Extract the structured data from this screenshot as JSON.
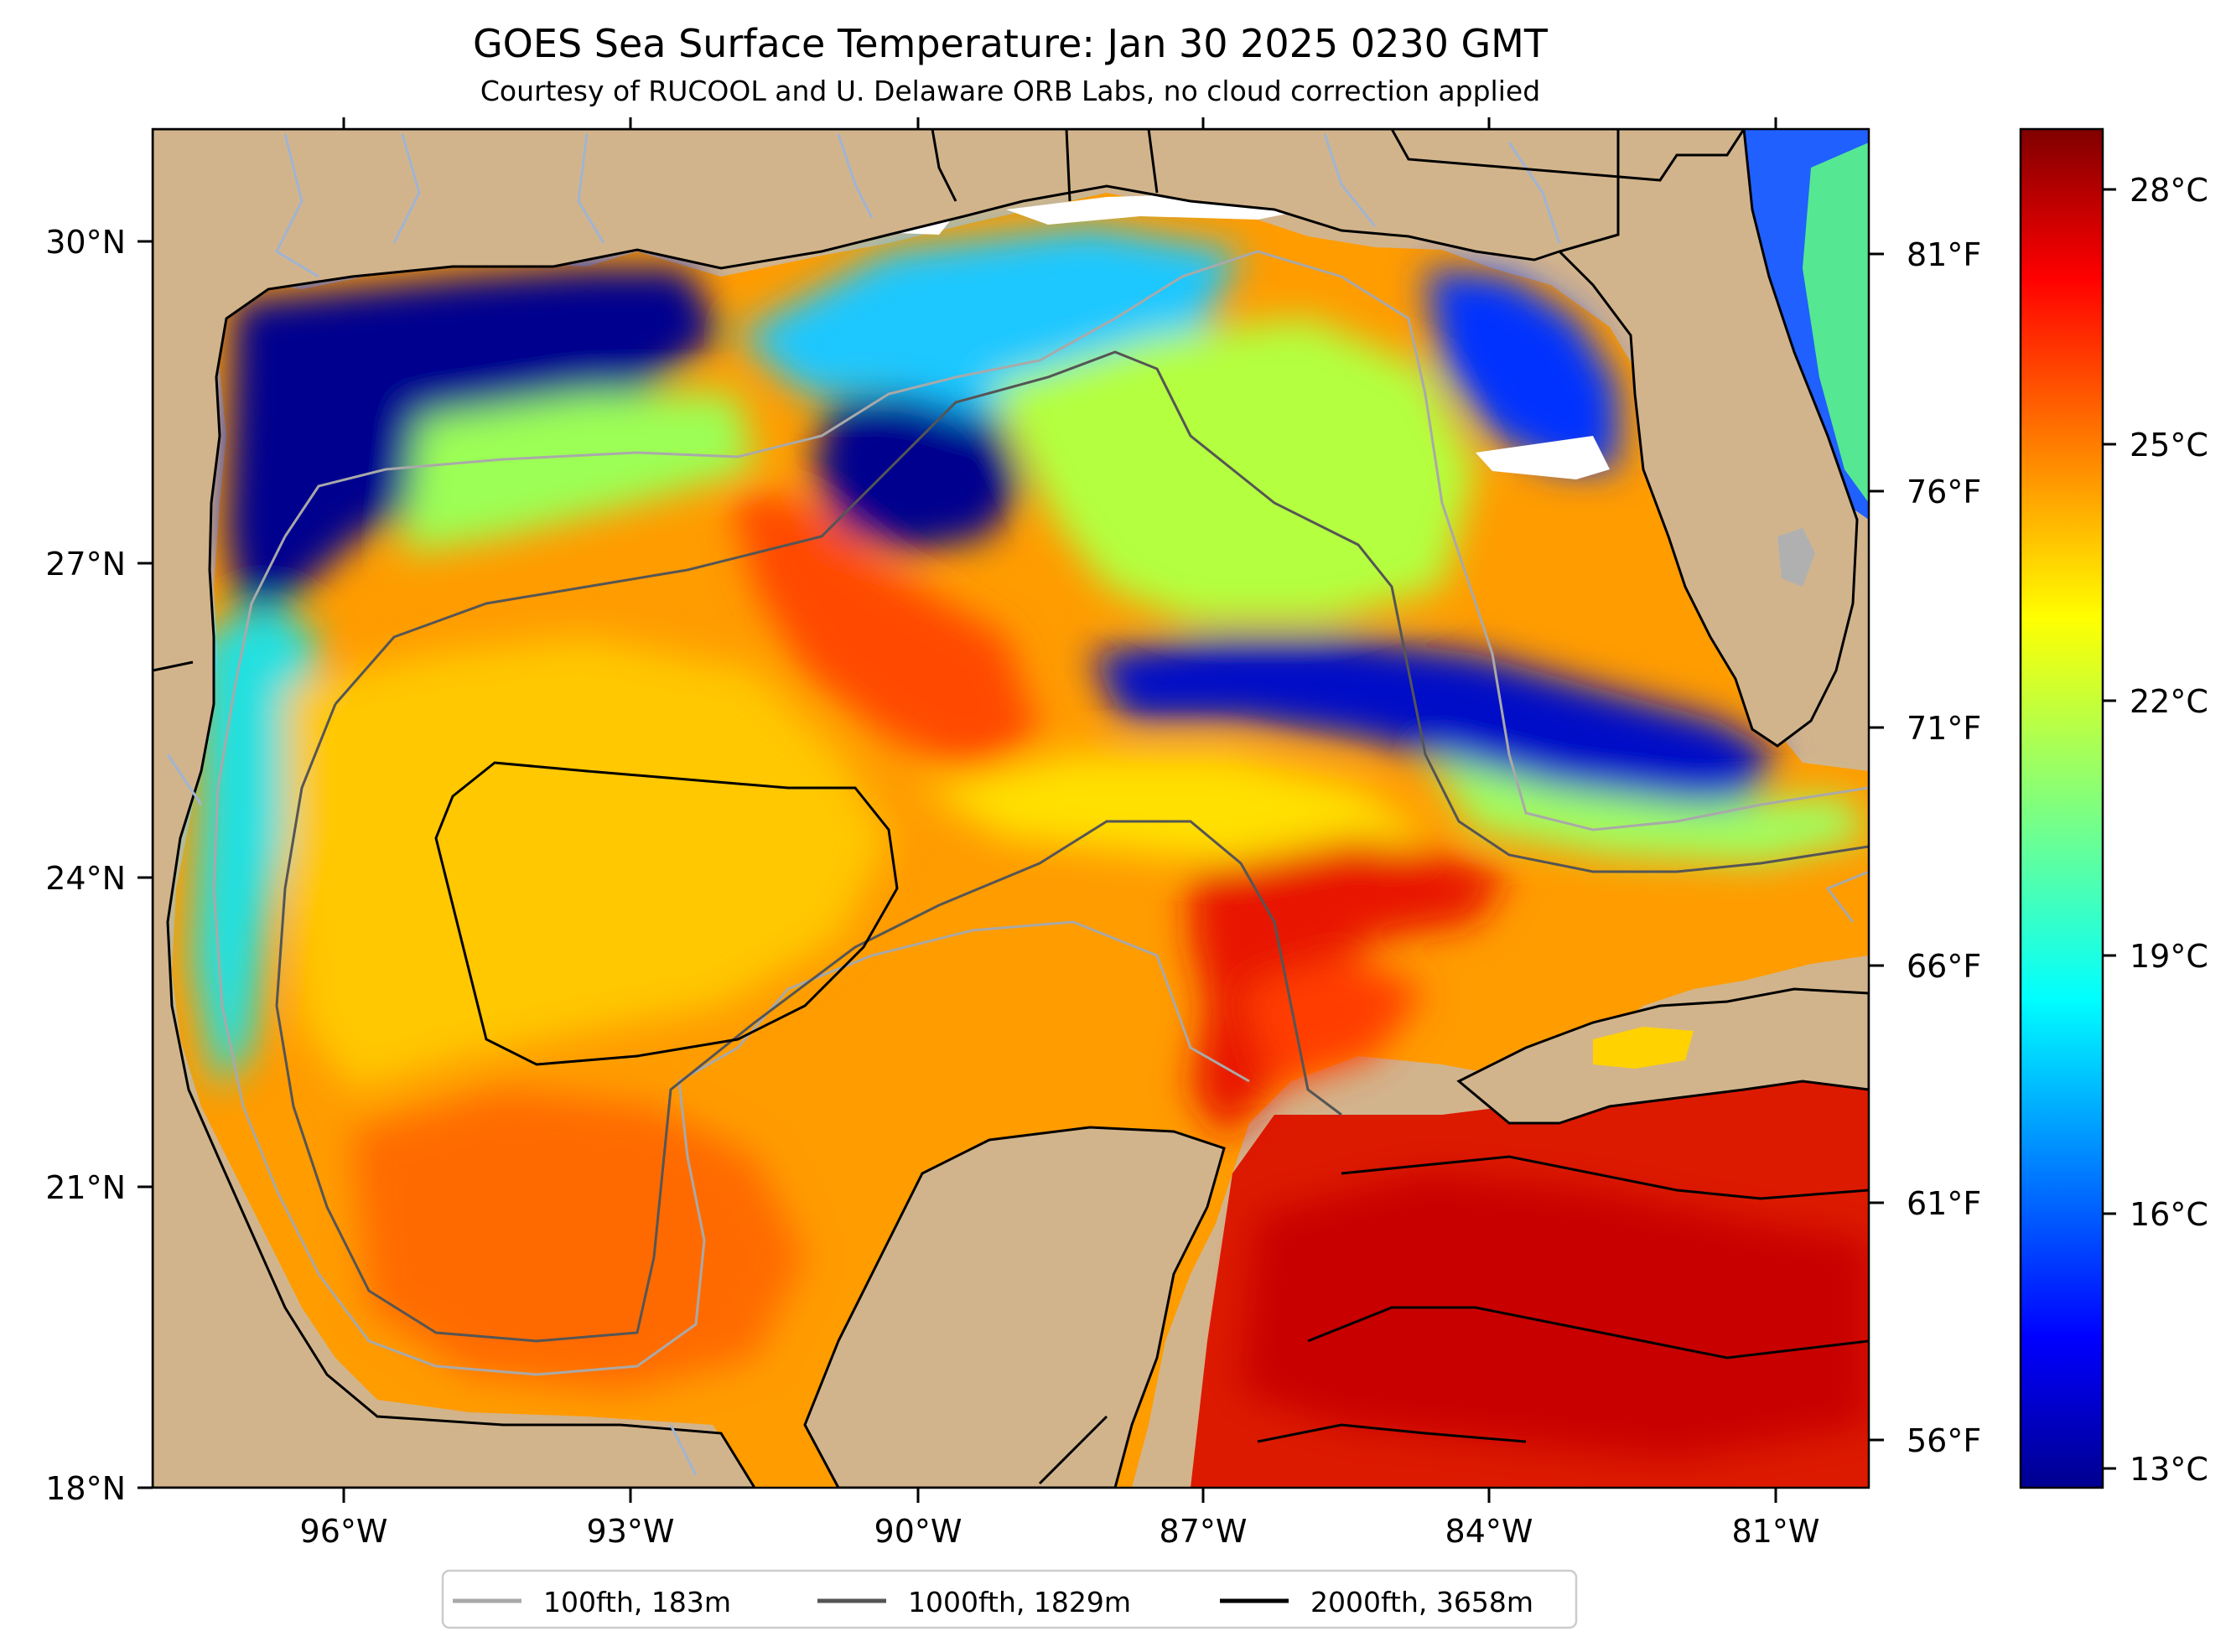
{
  "title": "GOES Sea Surface Temperature: Jan 30 2025 0230 GMT",
  "subtitle": "Courtesy of RUCOOL and U. Delaware ORB Labs, no cloud correction applied",
  "map": {
    "lat_ticks": [
      "30°N",
      "27°N",
      "24°N",
      "21°N",
      "18°N"
    ],
    "lon_ticks": [
      "96°W",
      "93°W",
      "90°W",
      "87°W",
      "84°W",
      "81°W"
    ],
    "fahrenheit_ticks": [
      "81°F",
      "76°F",
      "71°F",
      "66°F",
      "61°F",
      "56°F"
    ],
    "extent": {
      "lon": [
        -98,
        -80
      ],
      "lat": [
        18,
        31
      ]
    },
    "colors": {
      "land": "#d2b48c",
      "rivers": "#a0b4d2"
    }
  },
  "colorbar": {
    "ticks": [
      "28°C",
      "25°C",
      "22°C",
      "19°C",
      "16°C",
      "13°C"
    ],
    "range_c": [
      12.5,
      28.5
    ],
    "colormap": "jet"
  },
  "legend": {
    "items": [
      {
        "label": "100fth, 183m",
        "color": "#a9a9a9"
      },
      {
        "label": "1000fth, 1829m",
        "color": "#555555"
      },
      {
        "label": "2000fth, 3658m",
        "color": "#000000"
      }
    ]
  }
}
